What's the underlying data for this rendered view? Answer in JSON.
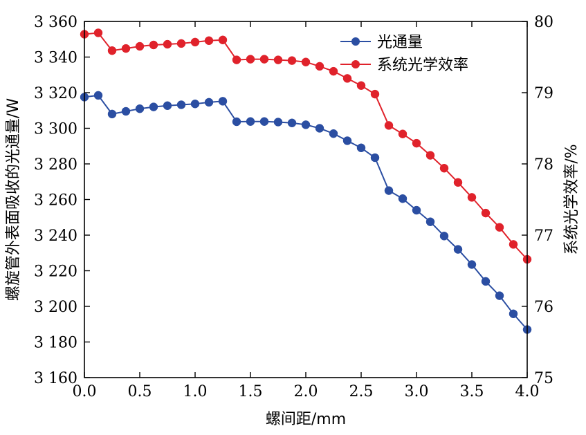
{
  "chart_data": {
    "type": "line",
    "title": "",
    "xlabel": "螺间距/mm",
    "ylabel_left": "螺旋管外表面吸收的光通量/W",
    "ylabel_right": "系统光学效率/%",
    "xlim": [
      0,
      4
    ],
    "ylim_left": [
      3160,
      3360
    ],
    "ylim_right": [
      75,
      80
    ],
    "x_ticks": [
      0,
      0.5,
      1.0,
      1.5,
      2.0,
      2.5,
      3.0,
      3.5,
      4.0
    ],
    "x_tick_labels": [
      "0.0",
      "0.5",
      "1.0",
      "1.5",
      "2.0",
      "2.5",
      "3.0",
      "3.5",
      "4.0"
    ],
    "y_left_ticks": [
      3160,
      3180,
      3200,
      3220,
      3240,
      3260,
      3280,
      3300,
      3320,
      3340,
      3360
    ],
    "y_left_tick_labels": [
      "3 160",
      "3 180",
      "3 200",
      "3 220",
      "3 240",
      "3 260",
      "3 280",
      "3 300",
      "3 320",
      "3 340",
      "3 360"
    ],
    "y_right_ticks": [
      75,
      76,
      77,
      78,
      79,
      80
    ],
    "y_right_tick_labels": [
      "75",
      "76",
      "77",
      "78",
      "79",
      "80"
    ],
    "legend_position": "top-right",
    "x": [
      0,
      0.125,
      0.25,
      0.375,
      0.5,
      0.625,
      0.75,
      0.875,
      1.0,
      1.125,
      1.25,
      1.375,
      1.5,
      1.625,
      1.75,
      1.875,
      2.0,
      2.125,
      2.25,
      2.375,
      2.5,
      2.625,
      2.75,
      2.875,
      3.0,
      3.125,
      3.25,
      3.375,
      3.5,
      3.625,
      3.75,
      3.875,
      4.0
    ],
    "series": [
      {
        "name": "光通量",
        "axis": "left",
        "color": "#2b4ea2",
        "values": [
          3317.5,
          3318.5,
          3308.0,
          3309.5,
          3311.0,
          3312.0,
          3312.7,
          3313.2,
          3313.7,
          3314.6,
          3315.2,
          3303.7,
          3303.8,
          3303.8,
          3303.5,
          3303.0,
          3302.0,
          3300.0,
          3297.0,
          3293.0,
          3289.0,
          3283.5,
          3265.0,
          3260.5,
          3254.0,
          3247.5,
          3239.5,
          3232.0,
          3223.5,
          3214.0,
          3206.0,
          3195.8,
          3187.0
        ]
      },
      {
        "name": "系统光学效率",
        "axis": "right",
        "color": "#e0222b",
        "values": [
          79.82,
          79.84,
          79.59,
          79.62,
          79.65,
          79.67,
          79.68,
          79.69,
          79.71,
          79.73,
          79.74,
          79.46,
          79.47,
          79.47,
          79.46,
          79.45,
          79.43,
          79.37,
          79.3,
          79.2,
          79.1,
          78.98,
          78.54,
          78.42,
          78.29,
          78.12,
          77.94,
          77.74,
          77.53,
          77.31,
          77.11,
          76.87,
          76.66
        ]
      }
    ]
  }
}
